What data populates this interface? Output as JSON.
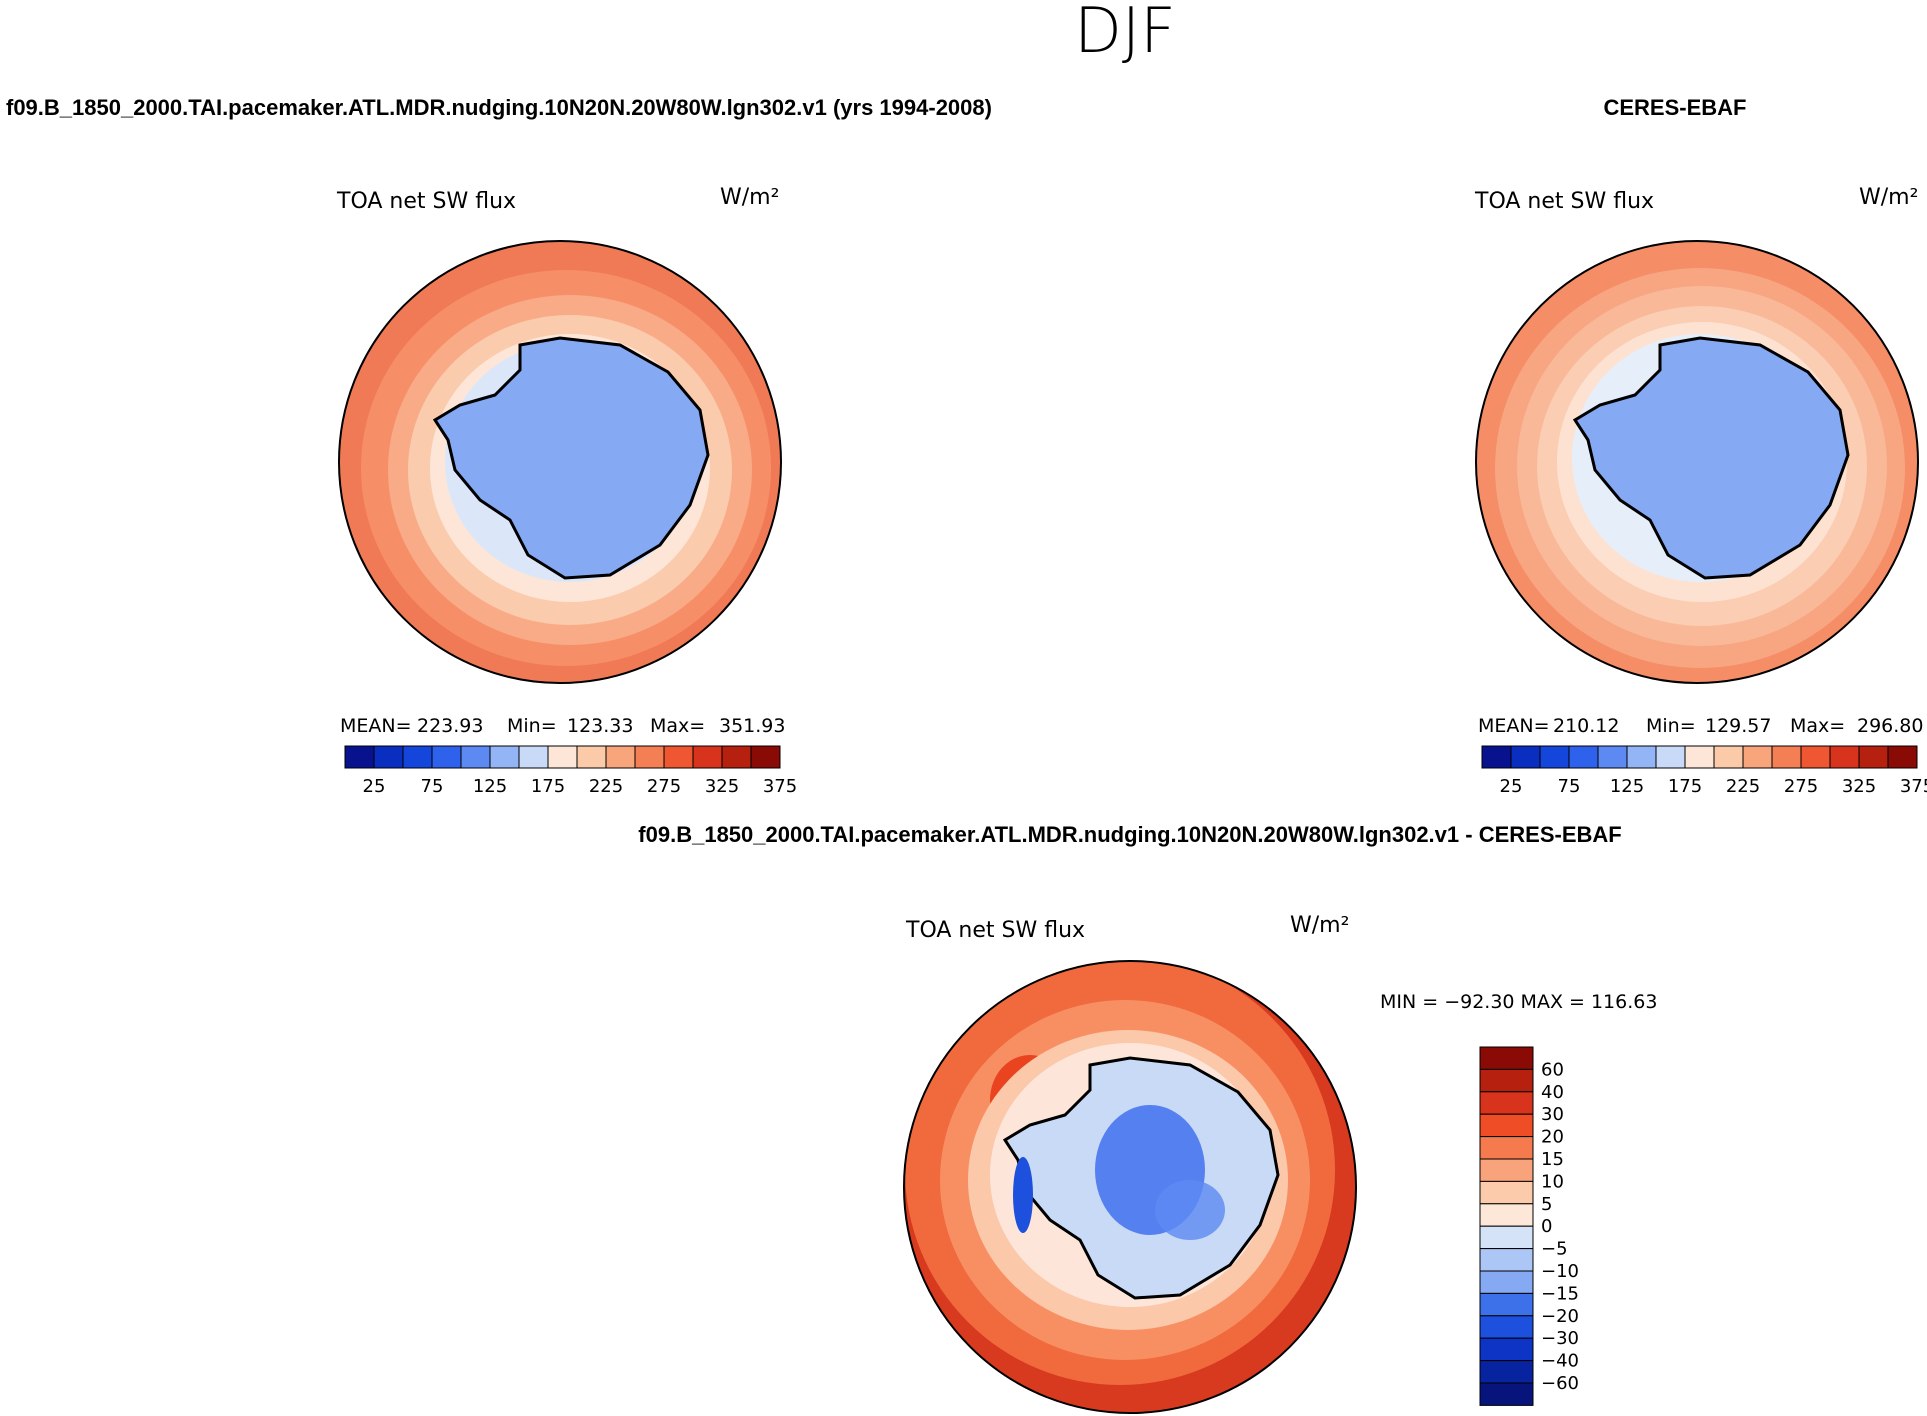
{
  "header": {
    "season": "DJF"
  },
  "panels": {
    "model": {
      "case_title": "f09.B_1850_2000.TAI.pacemaker.ATL.MDR.nudging.10N20N.20W80W.lgn302.v1 (yrs 1994-2008)",
      "variable": "TOA net SW flux",
      "units": "W/m²",
      "mean_label": "MEAN=",
      "mean": "223.93",
      "min_label": "Min=",
      "min": "123.33",
      "max_label": "Max=",
      "max": "351.93"
    },
    "obs": {
      "case_title": "CERES-EBAF",
      "variable": "TOA net SW flux",
      "units": "W/m²",
      "mean_label": "MEAN=",
      "mean": "210.12",
      "min_label": "Min=",
      "min": "129.57",
      "max_label": "Max=",
      "max": "296.80"
    },
    "diff": {
      "case_title": "f09.B_1850_2000.TAI.pacemaker.ATL.MDR.nudging.10N20N.20W80W.lgn302.v1 - CERES-EBAF",
      "variable": "TOA net SW flux",
      "units": "W/m²",
      "minmax_text": "MIN = −92.30 MAX = 116.63"
    }
  },
  "colorbars": {
    "absolute": {
      "colors": [
        "#08128f",
        "#0a2ec0",
        "#1446dc",
        "#2f62ec",
        "#5d8af2",
        "#93b4f5",
        "#c8daf7",
        "#fde6d7",
        "#fbcaa8",
        "#f8a57c",
        "#f57f55",
        "#ee5731",
        "#d8331c",
        "#b5200f",
        "#8a0b06"
      ],
      "tick_labels": [
        "25",
        "75",
        "125",
        "175",
        "225",
        "275",
        "325",
        "375"
      ]
    },
    "difference": {
      "colors": [
        "#8a0b06",
        "#b5200f",
        "#d8331c",
        "#ee4d25",
        "#f57a4e",
        "#f8a37b",
        "#fbcbab",
        "#fde7d8",
        "#d5e3f8",
        "#acc6f5",
        "#85a9f2",
        "#3c71ea",
        "#1d50dc",
        "#0d34c4",
        "#08239f",
        "#06147c"
      ],
      "tick_labels": [
        "60",
        "40",
        "30",
        "20",
        "15",
        "10",
        "5",
        "0",
        "−5",
        "−10",
        "−15",
        "−20",
        "−30",
        "−40",
        "−60"
      ]
    }
  },
  "maps": {
    "model": {
      "rings": [
        "#f07a55",
        "#f68f68",
        "#f8ab86",
        "#fbcbad",
        "#fde6d8",
        "#dbe7f9",
        "#c3d7f6"
      ],
      "land": "#85a9f3",
      "coast": "#000000"
    },
    "obs": {
      "rings": [
        "#f58d67",
        "#f8a582",
        "#f9b898",
        "#fbcdb2",
        "#fde2d2",
        "#e6eefa",
        "#c9dbf7"
      ],
      "land": "#85a9f3",
      "coast": "#000000"
    },
    "diff": {
      "rings": [
        "#d83a1f",
        "#f06a3d",
        "#f88f63",
        "#e9431f",
        "#fbc8a9",
        "#fde6d9",
        "#cfe0f8"
      ],
      "land": "#c8daf6",
      "coast": "#000000"
    }
  }
}
